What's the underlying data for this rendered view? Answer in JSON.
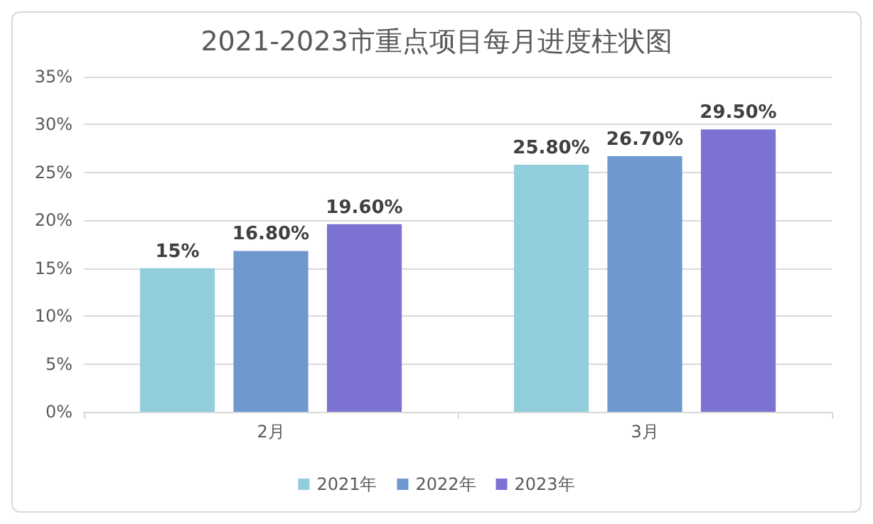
{
  "chart_data": {
    "type": "bar",
    "title": "2021-2023市重点项目每月进度柱状图",
    "categories": [
      "2月",
      "3月"
    ],
    "series": [
      {
        "name": "2021年",
        "color": "#92cddc",
        "values": [
          15,
          25.8
        ],
        "value_labels": [
          "15%",
          "25.80%"
        ]
      },
      {
        "name": "2022年",
        "color": "#6f98cf",
        "values": [
          16.8,
          26.7
        ],
        "value_labels": [
          "16.80%",
          "26.70%"
        ]
      },
      {
        "name": "2023年",
        "color": "#7b72d4",
        "values": [
          19.6,
          29.5
        ],
        "value_labels": [
          "19.60%",
          "29.50%"
        ]
      }
    ],
    "ylim": [
      0,
      35
    ],
    "yticks": [
      {
        "value": 0,
        "label": "0%"
      },
      {
        "value": 5,
        "label": "5%"
      },
      {
        "value": 10,
        "label": "10%"
      },
      {
        "value": 15,
        "label": "15%"
      },
      {
        "value": 20,
        "label": "20%"
      },
      {
        "value": 25,
        "label": "25%"
      },
      {
        "value": 30,
        "label": "30%"
      },
      {
        "value": 35,
        "label": "35%"
      }
    ],
    "grid": "y",
    "legend": "bottom"
  }
}
